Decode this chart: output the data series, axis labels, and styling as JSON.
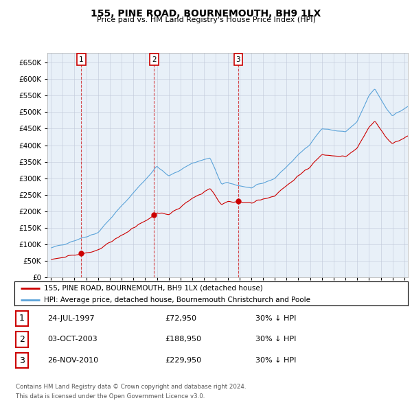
{
  "title": "155, PINE ROAD, BOURNEMOUTH, BH9 1LX",
  "subtitle": "Price paid vs. HM Land Registry's House Price Index (HPI)",
  "legend_line1": "155, PINE ROAD, BOURNEMOUTH, BH9 1LX (detached house)",
  "legend_line2": "HPI: Average price, detached house, Bournemouth Christchurch and Poole",
  "footer1": "Contains HM Land Registry data © Crown copyright and database right 2024.",
  "footer2": "This data is licensed under the Open Government Licence v3.0.",
  "transactions": [
    {
      "num": 1,
      "date": "24-JUL-1997",
      "price": "£72,950",
      "note": "30% ↓ HPI",
      "year": 1997.56,
      "value": 72950
    },
    {
      "num": 2,
      "date": "03-OCT-2003",
      "price": "£188,950",
      "note": "30% ↓ HPI",
      "year": 2003.75,
      "value": 188950
    },
    {
      "num": 3,
      "date": "26-NOV-2010",
      "price": "£229,950",
      "note": "30% ↓ HPI",
      "year": 2010.9,
      "value": 229950
    }
  ],
  "hpi_color": "#5ba3d9",
  "hpi_fill": "#ddeeff",
  "price_color": "#cc0000",
  "background_color": "#ffffff",
  "chart_bg": "#e8f0f8",
  "grid_color": "#c0c8d8",
  "ylim": [
    0,
    680000
  ],
  "yticks": [
    0,
    50000,
    100000,
    150000,
    200000,
    250000,
    300000,
    350000,
    400000,
    450000,
    500000,
    550000,
    600000,
    650000
  ],
  "xlim_start": 1994.7,
  "xlim_end": 2025.3
}
